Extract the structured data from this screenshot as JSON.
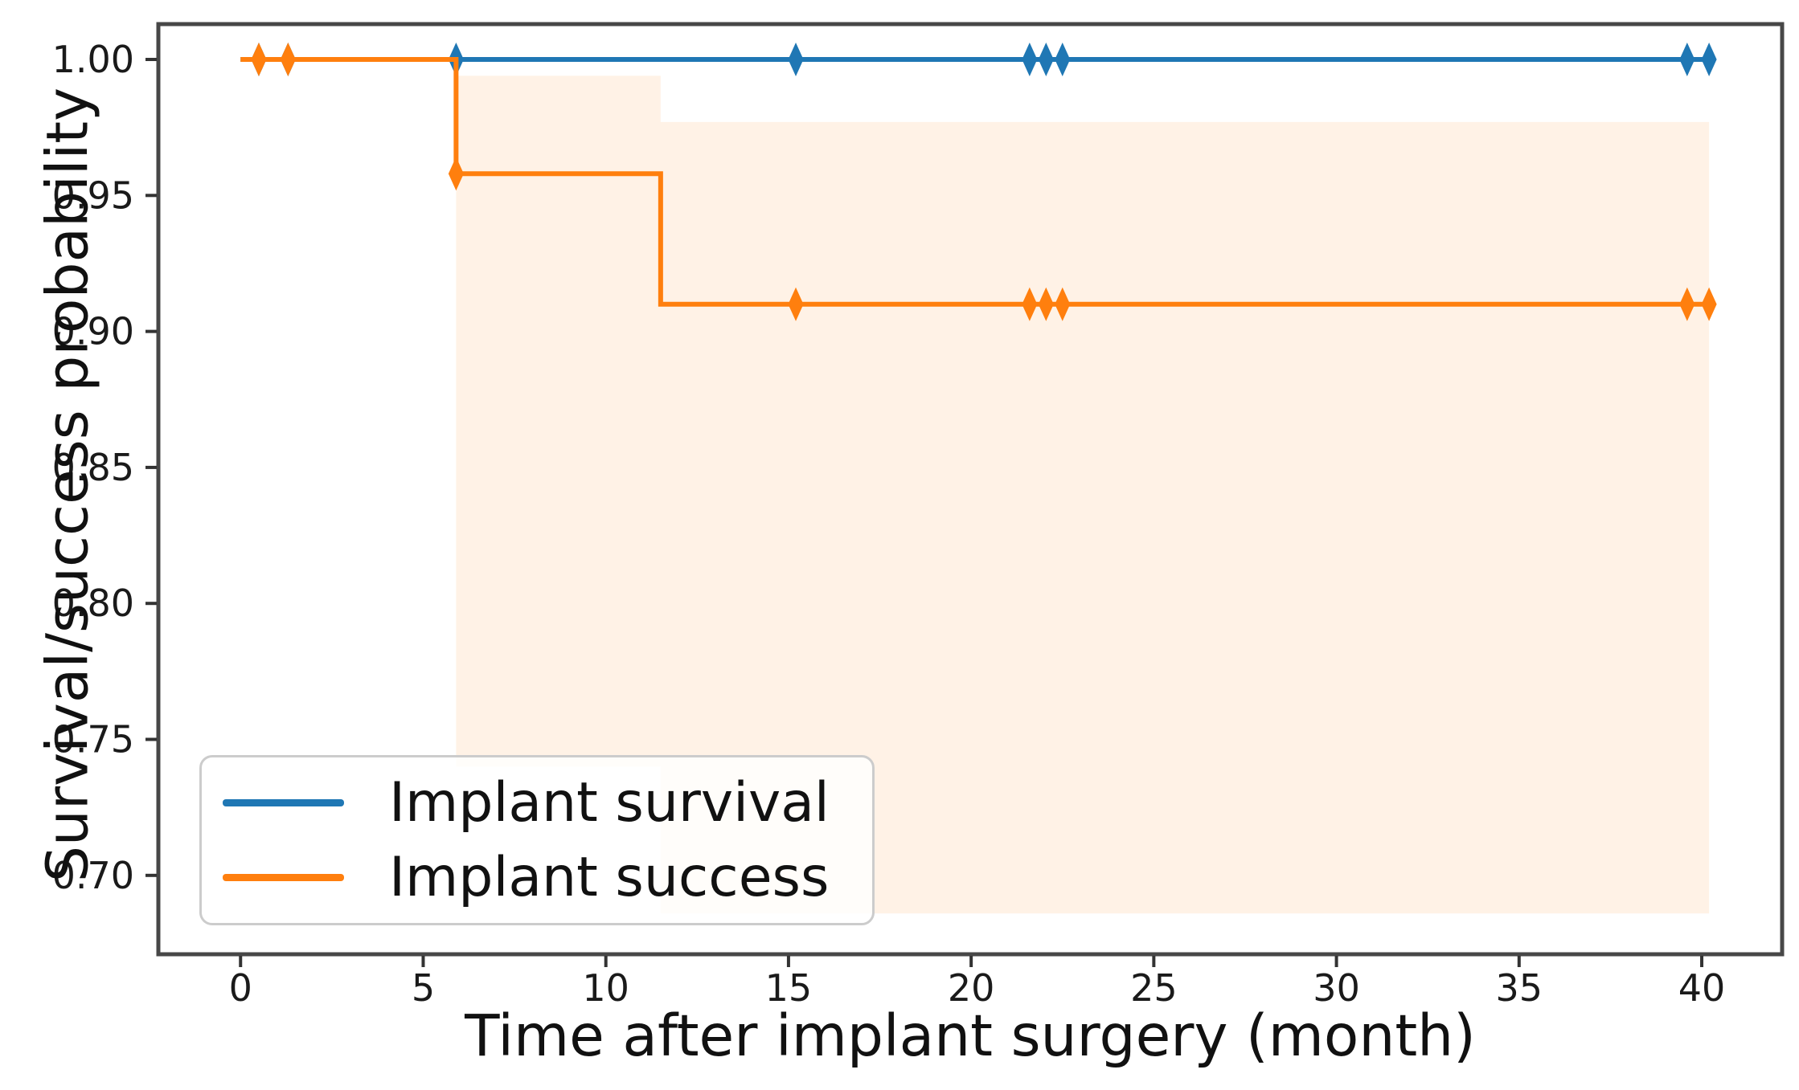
{
  "chart_data": {
    "type": "line",
    "subtype": "kaplan-meier-step",
    "title": "",
    "xlabel": "Time after implant surgery (month)",
    "ylabel": "Survival/success probability",
    "xlim": [
      -2.25,
      42.2
    ],
    "ylim": [
      0.671,
      1.013
    ],
    "xticks": [
      "0",
      "5",
      "10",
      "15",
      "20",
      "25",
      "30",
      "35",
      "40"
    ],
    "xtick_values": [
      0,
      5,
      10,
      15,
      20,
      25,
      30,
      35,
      40
    ],
    "yticks": [
      "1.00",
      "0.95",
      "0.90",
      "0.85",
      "0.80",
      "0.75",
      "0.70"
    ],
    "ytick_values": [
      1.0,
      0.95,
      0.9,
      0.85,
      0.8,
      0.75,
      0.7
    ],
    "grid": false,
    "legend_position": "lower left",
    "step_style": "post",
    "series": [
      {
        "name": "Implant survival",
        "color": "#1f77b4",
        "points": [
          [
            0,
            1.0
          ],
          [
            40.2,
            1.0
          ]
        ],
        "censor_marks": [
          [
            0.5,
            1.0
          ],
          [
            1.3,
            1.0
          ],
          [
            5.9,
            1.0
          ],
          [
            15.2,
            1.0
          ],
          [
            21.6,
            1.0
          ],
          [
            22.05,
            1.0
          ],
          [
            22.5,
            1.0
          ],
          [
            39.6,
            1.0
          ],
          [
            40.2,
            1.0
          ]
        ]
      },
      {
        "name": "Implant success",
        "color": "#ff7f0e",
        "points": [
          [
            0,
            1.0
          ],
          [
            5.9,
            1.0
          ],
          [
            5.9,
            0.958
          ],
          [
            11.5,
            0.958
          ],
          [
            11.5,
            0.91
          ],
          [
            40.2,
            0.91
          ]
        ],
        "censor_marks": [
          [
            0.5,
            1.0
          ],
          [
            1.3,
            1.0
          ],
          [
            5.9,
            0.958
          ],
          [
            15.2,
            0.91
          ],
          [
            21.6,
            0.91
          ],
          [
            22.05,
            0.91
          ],
          [
            22.5,
            0.91
          ],
          [
            39.6,
            0.91
          ],
          [
            40.2,
            0.91
          ]
        ],
        "ci_band": [
          {
            "x0": 5.9,
            "x1": 11.5,
            "lo": 0.74,
            "hi": 0.994
          },
          {
            "x0": 11.5,
            "x1": 40.2,
            "lo": 0.686,
            "hi": 0.977
          }
        ],
        "band_color": "rgba(255,127,14,0.10)"
      }
    ]
  },
  "legend": {
    "items": [
      {
        "label": "Implant survival"
      },
      {
        "label": "Implant success"
      }
    ]
  }
}
